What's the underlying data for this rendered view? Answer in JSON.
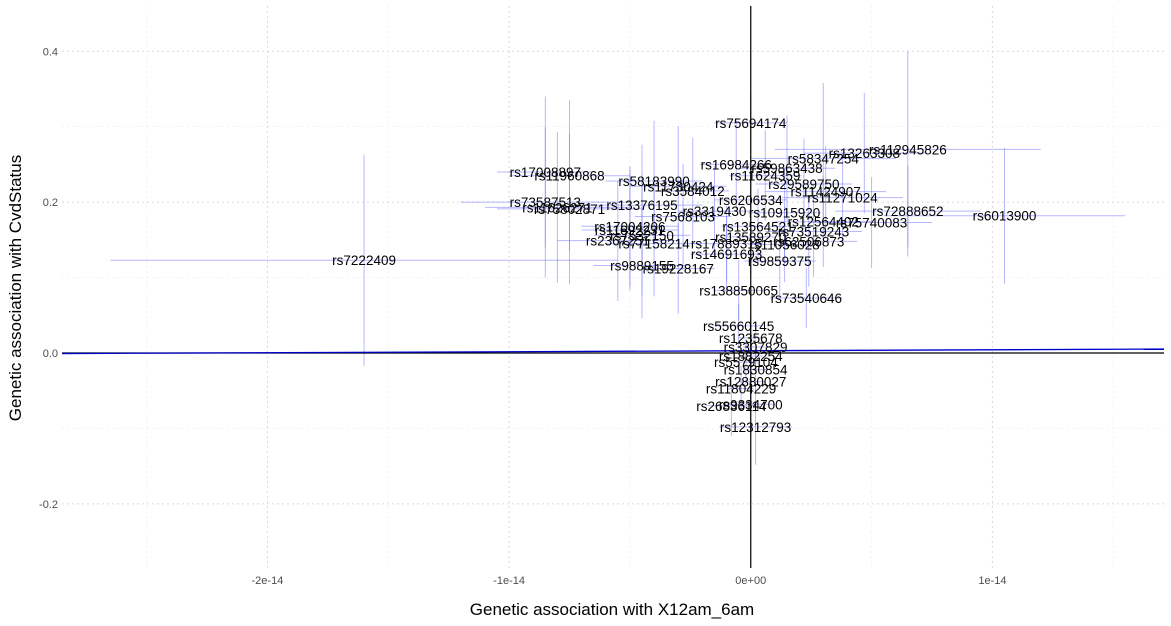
{
  "chart_data": {
    "type": "scatter",
    "xlabel": "Genetic association with X12am_6am",
    "ylabel": "Genetic association with CvdStatus",
    "xlim": [
      -2.85e-14,
      1.71e-14
    ],
    "ylim": [
      -0.285,
      0.46
    ],
    "xticks": [
      {
        "value": -2e-14,
        "label": "-2e-14"
      },
      {
        "value": -1e-14,
        "label": "-1e-14"
      },
      {
        "value": 0,
        "label": "0e+00"
      },
      {
        "value": 1e-14,
        "label": "1e-14"
      }
    ],
    "yticks": [
      {
        "value": -0.2,
        "label": "-0.2"
      },
      {
        "value": 0.0,
        "label": "0.0"
      },
      {
        "value": 0.2,
        "label": "0.2"
      },
      {
        "value": 0.4,
        "label": "0.4"
      }
    ],
    "grid": true,
    "regression_line": {
      "slope": 130000000000.0,
      "intercept": 0.003,
      "color": "#0000cc"
    },
    "colors": {
      "error_bar": "#7b7bff",
      "axis_line": "#000000",
      "fit_line": "#0000cc"
    },
    "points": [
      {
        "label": "rs7222409",
        "x": -1.6e-14,
        "y": 0.123,
        "xerr": 1.05e-14,
        "yerr": 0.14
      },
      {
        "label": "rs75694174",
        "x": 0.0,
        "y": 0.305,
        "xerr": 1.5e-15,
        "yerr": 0.04
      },
      {
        "label": "rs112945826",
        "x": 6.5e-15,
        "y": 0.27,
        "xerr": 5.5e-15,
        "yerr": 0.13
      },
      {
        "label": "rs13263308",
        "x": 4.7e-15,
        "y": 0.265,
        "xerr": 2.5e-15,
        "yerr": 0.08
      },
      {
        "label": "rs58347254",
        "x": 3e-15,
        "y": 0.258,
        "xerr": 3e-15,
        "yerr": 0.1
      },
      {
        "label": "rs16984266",
        "x": -6e-16,
        "y": 0.25,
        "xerr": 1.5e-15,
        "yerr": 0.06
      },
      {
        "label": "rs59863438",
        "x": 1.5e-15,
        "y": 0.245,
        "xerr": 2e-15,
        "yerr": 0.07
      },
      {
        "label": "rs11624359",
        "x": 6e-16,
        "y": 0.235,
        "xerr": 1.5e-15,
        "yerr": 0.06
      },
      {
        "label": "rs17008897",
        "x": -8.5e-15,
        "y": 0.24,
        "xerr": 2e-15,
        "yerr": 0.1
      },
      {
        "label": "rs11960868",
        "x": -7.5e-15,
        "y": 0.235,
        "xerr": 2.5e-15,
        "yerr": 0.1
      },
      {
        "label": "rs58183990",
        "x": -4e-15,
        "y": 0.228,
        "xerr": 2e-15,
        "yerr": 0.08
      },
      {
        "label": "rs29589750",
        "x": 2.2e-15,
        "y": 0.224,
        "xerr": 2e-15,
        "yerr": 0.06
      },
      {
        "label": "rs11730424",
        "x": -3e-15,
        "y": 0.221,
        "xerr": 2e-15,
        "yerr": 0.08
      },
      {
        "label": "rs11424907",
        "x": 3.1e-15,
        "y": 0.214,
        "xerr": 2.5e-15,
        "yerr": 0.06
      },
      {
        "label": "rs3584012",
        "x": -2.4e-15,
        "y": 0.215,
        "xerr": 1.5e-15,
        "yerr": 0.07
      },
      {
        "label": "rs11271024",
        "x": 3.8e-15,
        "y": 0.206,
        "xerr": 2.5e-15,
        "yerr": 0.06
      },
      {
        "label": "rs73587513",
        "x": -8.5e-15,
        "y": 0.2,
        "xerr": 3.5e-15,
        "yerr": 0.1
      },
      {
        "label": "rs13376195",
        "x": -4.5e-15,
        "y": 0.196,
        "xerr": 2.5e-15,
        "yerr": 0.08
      },
      {
        "label": "rs6206534",
        "x": 0.0,
        "y": 0.203,
        "xerr": 1.5e-15,
        "yerr": 0.05
      },
      {
        "label": "rs11626271",
        "x": -8e-15,
        "y": 0.193,
        "xerr": 3e-15,
        "yerr": 0.1
      },
      {
        "label": "rs75802871",
        "x": -7.5e-15,
        "y": 0.191,
        "xerr": 3e-15,
        "yerr": 0.1
      },
      {
        "label": "rs72888652",
        "x": 6.5e-15,
        "y": 0.188,
        "xerr": 3e-15,
        "yerr": 0.06
      },
      {
        "label": "rs6013900",
        "x": 1.05e-14,
        "y": 0.182,
        "xerr": 5e-15,
        "yerr": 0.09
      },
      {
        "label": "rs10915920",
        "x": 1.4e-15,
        "y": 0.186,
        "xerr": 1.5e-15,
        "yerr": 0.06
      },
      {
        "label": "rs3319430",
        "x": -1.5e-15,
        "y": 0.188,
        "xerr": 1.5e-15,
        "yerr": 0.06
      },
      {
        "label": "rs7568103",
        "x": -2.8e-15,
        "y": 0.181,
        "xerr": 2e-15,
        "yerr": 0.07
      },
      {
        "label": "rs75740083",
        "x": 5e-15,
        "y": 0.173,
        "xerr": 2.5e-15,
        "yerr": 0.06
      },
      {
        "label": "rs12564402",
        "x": 3e-15,
        "y": 0.174,
        "xerr": 2e-15,
        "yerr": 0.06
      },
      {
        "label": "rs17004206",
        "x": -5e-15,
        "y": 0.168,
        "xerr": 2e-15,
        "yerr": 0.08
      },
      {
        "label": "rs11692231",
        "x": -5e-15,
        "y": 0.163,
        "xerr": 2e-15,
        "yerr": 0.08
      },
      {
        "label": "rs13564521",
        "x": 3e-16,
        "y": 0.168,
        "xerr": 1.5e-15,
        "yerr": 0.05
      },
      {
        "label": "rs73519243",
        "x": 2.6e-15,
        "y": 0.161,
        "xerr": 2e-15,
        "yerr": 0.06
      },
      {
        "label": "rs7532150",
        "x": -4.5e-15,
        "y": 0.156,
        "xerr": 2e-15,
        "yerr": 0.08
      },
      {
        "label": "rs13589270",
        "x": 0.0,
        "y": 0.154,
        "xerr": 1e-15,
        "yerr": 0.05
      },
      {
        "label": "rs2367251",
        "x": -5.5e-15,
        "y": 0.149,
        "xerr": 2.5e-15,
        "yerr": 0.08
      },
      {
        "label": "rs62506873",
        "x": 2.4e-15,
        "y": 0.148,
        "xerr": 2e-15,
        "yerr": 0.06
      },
      {
        "label": "rs77158214",
        "x": -4e-15,
        "y": 0.145,
        "xerr": 2e-15,
        "yerr": 0.07
      },
      {
        "label": "rs17889315",
        "x": -1e-15,
        "y": 0.145,
        "xerr": 1.5e-15,
        "yerr": 0.05
      },
      {
        "label": "rs11056028",
        "x": 1.4e-15,
        "y": 0.144,
        "xerr": 1.5e-15,
        "yerr": 0.05
      },
      {
        "label": "rs14691693",
        "x": -1e-15,
        "y": 0.131,
        "xerr": 1.5e-15,
        "yerr": 0.05
      },
      {
        "label": "rs9859375",
        "x": 1.2e-15,
        "y": 0.122,
        "xerr": 1.5e-15,
        "yerr": 0.05
      },
      {
        "label": "rs9889155",
        "x": -4.5e-15,
        "y": 0.116,
        "xerr": 2e-15,
        "yerr": 0.07
      },
      {
        "label": "rs19228167",
        "x": -3e-15,
        "y": 0.112,
        "xerr": 1.5e-15,
        "yerr": 0.06
      },
      {
        "label": "rs138850065",
        "x": -5e-16,
        "y": 0.083,
        "xerr": 1e-15,
        "yerr": 0.04
      },
      {
        "label": "rs73540646",
        "x": 2.3e-15,
        "y": 0.073,
        "xerr": 1.5e-15,
        "yerr": 0.04
      },
      {
        "label": "rs55660145",
        "x": -5e-16,
        "y": 0.036,
        "xerr": 1e-15,
        "yerr": 0.03
      },
      {
        "label": "rs1235678",
        "x": 0.0,
        "y": 0.02,
        "xerr": 5e-16,
        "yerr": 0.03
      },
      {
        "label": "rs3307829",
        "x": 2e-16,
        "y": 0.008,
        "xerr": 5e-16,
        "yerr": 0.03
      },
      {
        "label": "rs1882254",
        "x": 0.0,
        "y": -0.004,
        "xerr": 5e-16,
        "yerr": 0.03
      },
      {
        "label": "rs5579104",
        "x": -2e-16,
        "y": -0.012,
        "xerr": 5e-16,
        "yerr": 0.03
      },
      {
        "label": "rs1830854",
        "x": 2e-16,
        "y": -0.022,
        "xerr": 5e-16,
        "yerr": 0.03
      },
      {
        "label": "rs12880027",
        "x": 0.0,
        "y": -0.038,
        "xerr": 5e-16,
        "yerr": 0.03
      },
      {
        "label": "rs11804229",
        "x": -4e-16,
        "y": -0.047,
        "xerr": 5e-16,
        "yerr": 0.03
      },
      {
        "label": "rs26836114",
        "x": -8e-16,
        "y": -0.07,
        "xerr": 1e-15,
        "yerr": 0.04
      },
      {
        "label": "rs9334700",
        "x": 0.0,
        "y": -0.068,
        "xerr": 1e-15,
        "yerr": 0.04
      },
      {
        "label": "rs12312793",
        "x": 2e-16,
        "y": -0.098,
        "xerr": 1.5e-15,
        "yerr": 0.05
      }
    ]
  }
}
